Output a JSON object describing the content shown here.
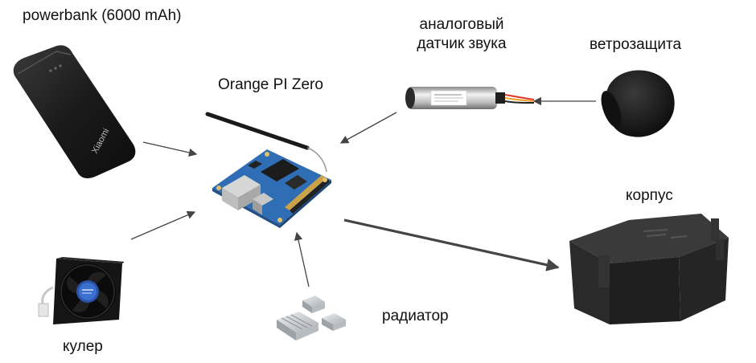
{
  "labels": {
    "powerbank": "powerbank (6000 mAh)",
    "board": "Orange PI Zero",
    "sensor_line1": "аналоговый",
    "sensor_line2": "датчик звука",
    "windscreen": "ветрозащита",
    "case": "корпус",
    "cooler": "кулер",
    "radiator": "радиатор"
  },
  "powerbank_brand": "Xiaomi",
  "colors": {
    "arrow": "#444444",
    "board_blue": "#2f6db5",
    "board_gold": "#c9a24a",
    "plastic_black": "#1c1c1c",
    "case_gray": "#2b2b2b",
    "foam": "#151515",
    "aluminium": "#cfd3d6"
  },
  "icons": [
    "powerbank-icon",
    "orange-pi-board-icon",
    "sound-sensor-icon",
    "windscreen-foam-icon",
    "enclosure-case-icon",
    "cooler-fan-icon",
    "radiator-heatsink-icon"
  ]
}
